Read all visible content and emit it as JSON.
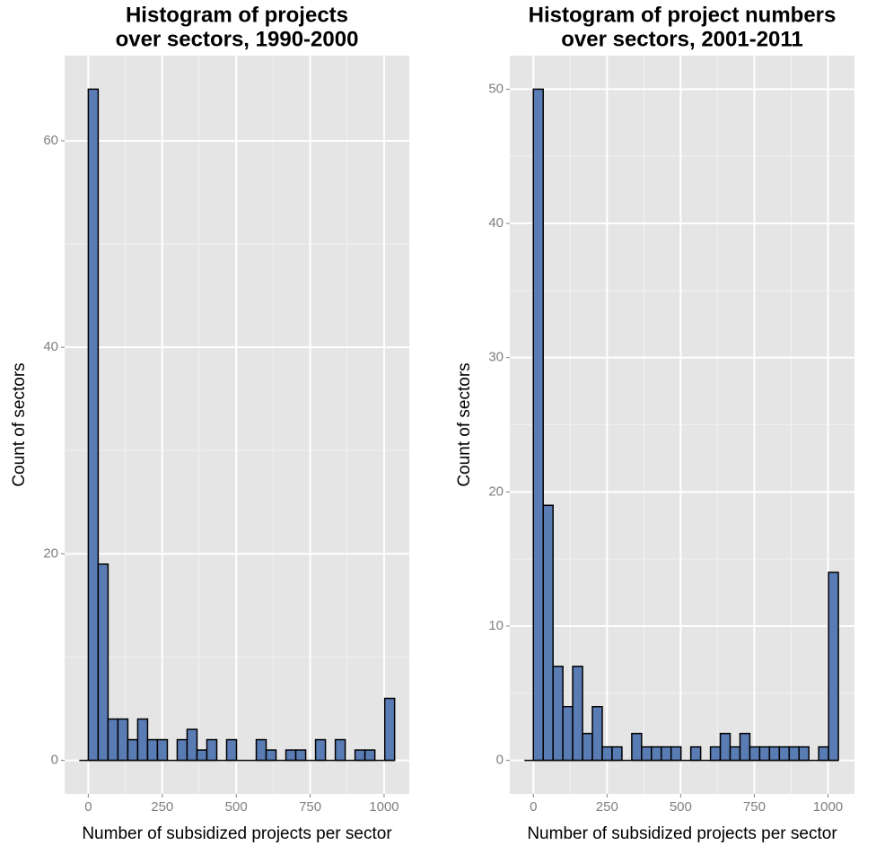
{
  "chart_data": [
    {
      "type": "histogram",
      "title": [
        "Histogram of projects",
        "over sectors, 1990-2000"
      ],
      "x_label": "Number of subsidized projects per sector",
      "y_label": "Count of sectors",
      "bins": [
        0,
        33.4,
        66.8,
        100.2,
        133.6,
        167,
        200.4,
        233.8,
        267.2,
        300.6,
        334,
        367.4,
        400.8,
        434.2,
        467.6,
        501,
        534.4,
        567.8,
        601.2,
        634.6,
        668,
        701.4,
        734.8,
        768.2,
        801.6,
        835,
        868.4,
        901.8,
        935.2,
        968.6,
        1002,
        1035.4
      ],
      "values": [
        65,
        19,
        4,
        4,
        2,
        4,
        2,
        2,
        0,
        2,
        3,
        1,
        2,
        0,
        2,
        0,
        0,
        2,
        1,
        0,
        1,
        1,
        0,
        2,
        0,
        2,
        0,
        1,
        1,
        0,
        6
      ],
      "color": "#5a7cb4",
      "xlim": [
        -80,
        1085
      ],
      "ylim": [
        -3.25,
        68.25
      ],
      "xticks": [
        0,
        250,
        500,
        750,
        1000
      ],
      "yticks": [
        0,
        20,
        40,
        60
      ],
      "grid": true
    },
    {
      "type": "histogram",
      "title": [
        "Histogram of project numbers",
        "over sectors, 2001-2011"
      ],
      "x_label": "Number of subsidized projects per sector",
      "y_label": "Count of sectors",
      "bins": [
        0,
        33.4,
        66.8,
        100.2,
        133.6,
        167,
        200.4,
        233.8,
        267.2,
        300.6,
        334,
        367.4,
        400.8,
        434.2,
        467.6,
        501,
        534.4,
        567.8,
        601.2,
        634.6,
        668,
        701.4,
        734.8,
        768.2,
        801.6,
        835,
        868.4,
        901.8,
        935.2,
        968.6,
        1002,
        1035.4
      ],
      "values": [
        50,
        19,
        7,
        4,
        7,
        2,
        4,
        1,
        1,
        0,
        2,
        1,
        1,
        1,
        1,
        0,
        1,
        0,
        1,
        2,
        1,
        2,
        1,
        1,
        1,
        1,
        1,
        1,
        0,
        1,
        14
      ],
      "color": "#5a7cb4",
      "xlim": [
        -80,
        1090
      ],
      "ylim": [
        -2.5,
        52.5
      ],
      "xticks": [
        0,
        250,
        500,
        750,
        1000
      ],
      "yticks": [
        0,
        10,
        20,
        30,
        40,
        50
      ],
      "grid": true
    }
  ]
}
